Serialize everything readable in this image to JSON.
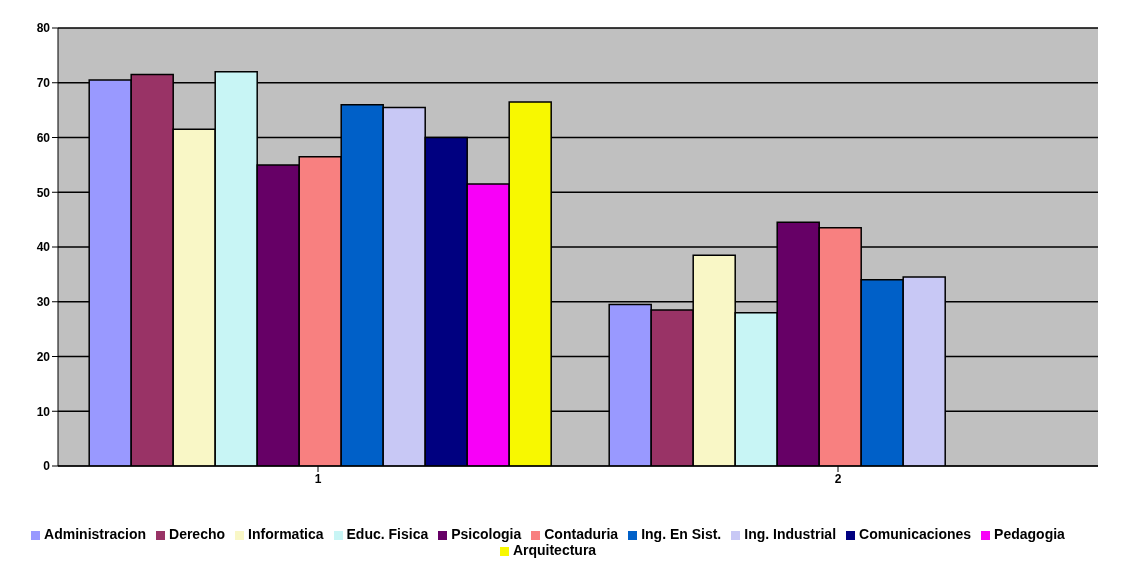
{
  "chart_data": {
    "type": "bar",
    "categories": [
      "1",
      "2"
    ],
    "series": [
      {
        "name": "Administracion",
        "color": "#9999ff",
        "values": [
          70.5,
          29.5
        ]
      },
      {
        "name": "Derecho",
        "color": "#993366",
        "values": [
          71.5,
          28.5
        ]
      },
      {
        "name": "Informatica",
        "color": "#f9f7c6",
        "values": [
          61.5,
          38.5
        ]
      },
      {
        "name": "Educ. Fisica",
        "color": "#c8f5f5",
        "values": [
          72,
          28
        ]
      },
      {
        "name": "Psicologia",
        "color": "#660066",
        "values": [
          55,
          44.5
        ]
      },
      {
        "name": "Contaduria",
        "color": "#f88080",
        "values": [
          56.5,
          43.5
        ]
      },
      {
        "name": "Ing. En Sist.",
        "color": "#0060c8",
        "values": [
          66,
          34
        ]
      },
      {
        "name": "Ing. Industrial",
        "color": "#c8c8f5",
        "values": [
          65.5,
          34.5
        ]
      },
      {
        "name": "Comunicaciones",
        "color": "#000080",
        "values": [
          60,
          null
        ]
      },
      {
        "name": "Pedagogia",
        "color": "#f800f8",
        "values": [
          51.5,
          null
        ]
      },
      {
        "name": "Arquitectura",
        "color": "#f8f800",
        "values": [
          66.5,
          null
        ]
      }
    ],
    "ylim": [
      0,
      80
    ],
    "yticks": [
      0,
      10,
      20,
      30,
      40,
      50,
      60,
      70,
      80
    ],
    "grid": "y",
    "legend": "bottom"
  }
}
